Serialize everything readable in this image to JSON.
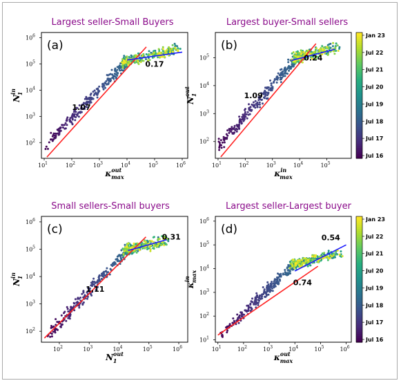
{
  "colorbar_labels": [
    "Jan 23",
    "Jul 22",
    "Jul 21",
    "Jul 20",
    "Jul 19",
    "Jul 18",
    "Jul 17",
    "Jul 16"
  ],
  "colormap": [
    "#440154",
    "#472d7b",
    "#3b528b",
    "#2c728e",
    "#21918c",
    "#28ae80",
    "#5ec962",
    "#addc30",
    "#fde725"
  ],
  "fit_colors": {
    "low": "#ff2020",
    "high": "#1a1aff"
  },
  "chart_data": [
    {
      "type": "scatter",
      "panel": "(a)",
      "title": "Largest seller-Small Buyers",
      "xlabel_base": "κ",
      "xlabel_sup": "out",
      "xlabel_sub": "max",
      "ylabel_base": "N",
      "ylabel_sup": "in",
      "ylabel_sub": "1",
      "x_log_range": [
        0.9,
        6.2
      ],
      "y_log_range": [
        1.4,
        6.2
      ],
      "x_ticks": [
        1,
        2,
        3,
        4,
        5,
        6
      ],
      "y_ticks": [
        2,
        3,
        4,
        5,
        6
      ],
      "cloud": {
        "x0": 1.0,
        "y0": 1.85,
        "x1": 4.0,
        "y1": 5.1,
        "xmax": 6.0
      },
      "fits": [
        {
          "slope_label": "1.07",
          "color": "low",
          "x": [
            1.1,
            4.7
          ],
          "y": [
            1.45,
            5.65
          ]
        },
        {
          "slope_label": "0.17",
          "color": "high",
          "x": [
            4.0,
            6.0
          ],
          "y": [
            5.15,
            5.45
          ]
        }
      ],
      "slope_label_pos": [
        {
          "x": 2.35,
          "y": 3.25
        },
        {
          "x": 5.0,
          "y": 4.9
        }
      ]
    },
    {
      "type": "scatter",
      "panel": "(b)",
      "title": "Largest buyer-Small sellers",
      "xlabel_base": "κ",
      "xlabel_sup": "in",
      "xlabel_sub": "max",
      "ylabel_base": "N",
      "ylabel_sup": "out",
      "ylabel_sub": "1",
      "x_log_range": [
        0.9,
        5.9
      ],
      "y_log_range": [
        1.4,
        5.9
      ],
      "x_ticks": [
        1,
        2,
        3,
        4,
        5
      ],
      "y_ticks": [
        2,
        3,
        4,
        5
      ],
      "cloud": {
        "x0": 1.0,
        "y0": 1.8,
        "x1": 3.9,
        "y1": 5.0,
        "xmax": 5.5
      },
      "fits": [
        {
          "slope_label": "1.09",
          "color": "low",
          "x": [
            1.1,
            4.6
          ],
          "y": [
            1.45,
            5.5
          ]
        },
        {
          "slope_label": "0.24",
          "color": "high",
          "x": [
            3.7,
            5.3
          ],
          "y": [
            4.9,
            5.3
          ]
        }
      ],
      "slope_label_pos": [
        {
          "x": 2.3,
          "y": 3.55
        },
        {
          "x": 4.5,
          "y": 4.9
        }
      ]
    },
    {
      "type": "scatter",
      "panel": "(c)",
      "title": "Small sellers-Small buyers",
      "xlabel_base": "N",
      "xlabel_sup": "out",
      "xlabel_sub": "1",
      "ylabel_base": "N",
      "ylabel_sup": "in",
      "ylabel_sub": "1",
      "x_log_range": [
        1.4,
        6.3
      ],
      "y_log_range": [
        1.6,
        6.2
      ],
      "x_ticks": [
        2,
        3,
        4,
        5,
        6
      ],
      "y_ticks": [
        2,
        3,
        4,
        5,
        6
      ],
      "cloud": {
        "x0": 1.6,
        "y0": 1.8,
        "x1": 4.3,
        "y1": 5.0,
        "xmax": 5.7
      },
      "fits": [
        {
          "slope_label": "1.11",
          "color": "low",
          "x": [
            1.5,
            4.9
          ],
          "y": [
            1.75,
            5.45
          ]
        },
        {
          "slope_label": "0.31",
          "color": "high",
          "x": [
            4.3,
            5.6
          ],
          "y": [
            4.95,
            5.35
          ]
        }
      ],
      "slope_label_pos": [
        {
          "x": 3.2,
          "y": 3.45
        },
        {
          "x": 5.75,
          "y": 5.35
        }
      ]
    },
    {
      "type": "scatter",
      "panel": "(d)",
      "title": "Largest seller-Largest buyer",
      "xlabel_base": "κ",
      "xlabel_sup": "out",
      "xlabel_sub": "max",
      "ylabel_base": "κ",
      "ylabel_sup": "in",
      "ylabel_sub": "max",
      "x_log_range": [
        0.9,
        6.2
      ],
      "y_log_range": [
        0.9,
        6.2
      ],
      "x_ticks": [
        1,
        2,
        3,
        4,
        5,
        6
      ],
      "y_ticks": [
        1,
        2,
        3,
        4,
        5,
        6
      ],
      "cloud": {
        "x0": 1.1,
        "y0": 1.2,
        "x1": 4.0,
        "y1": 4.2,
        "xmax": 5.9
      },
      "fits": [
        {
          "slope_label": "0.74",
          "color": "low",
          "x": [
            1.0,
            4.9
          ],
          "y": [
            1.2,
            4.1
          ]
        },
        {
          "slope_label": "0.54",
          "color": "high",
          "x": [
            4.0,
            6.0
          ],
          "y": [
            3.9,
            5.0
          ]
        }
      ],
      "slope_label_pos": [
        {
          "x": 4.3,
          "y": 3.3
        },
        {
          "x": 5.4,
          "y": 5.2
        }
      ]
    }
  ]
}
